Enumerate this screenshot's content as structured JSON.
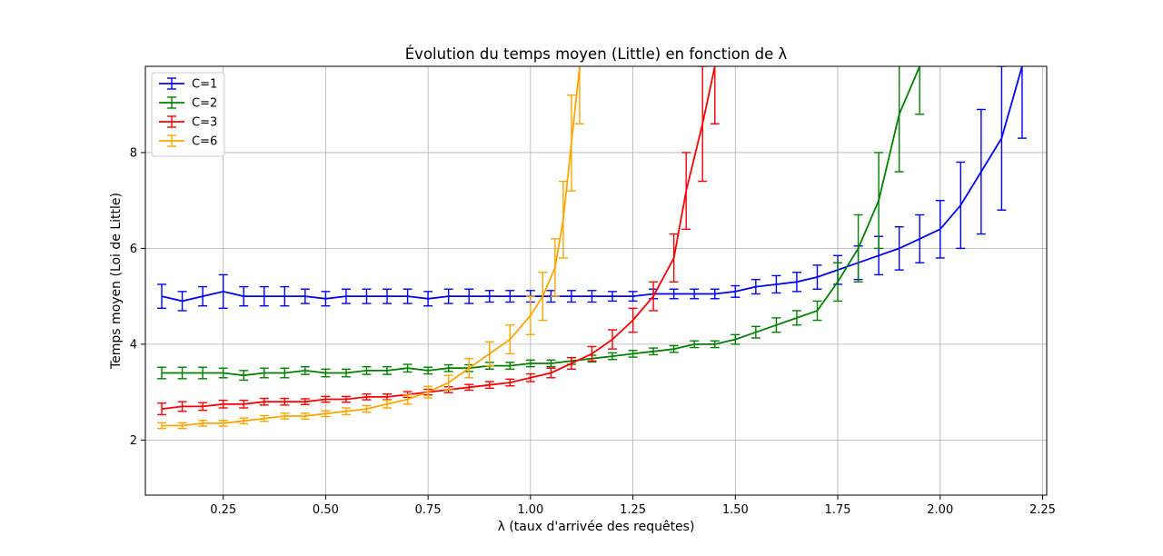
{
  "chart_data": {
    "type": "line",
    "title": "Évolution du temps moyen (Little) en fonction de λ",
    "xlabel": "λ (taux d'arrivée des requêtes)",
    "ylabel": "Temps moyen (Loi de Little)",
    "xlim": [
      0.06,
      2.26
    ],
    "ylim": [
      0.85,
      9.8
    ],
    "xticks": [
      0.25,
      0.5,
      0.75,
      1.0,
      1.25,
      1.5,
      1.75,
      2.0,
      2.25
    ],
    "xtick_labels": [
      "0.25",
      "0.50",
      "0.75",
      "1.00",
      "1.25",
      "1.50",
      "1.75",
      "2.00",
      "2.25"
    ],
    "yticks": [
      2,
      4,
      6,
      8
    ],
    "ytick_labels": [
      "2",
      "4",
      "6",
      "8"
    ],
    "grid": true,
    "error_bars": true,
    "legend_position": "top-left",
    "series": [
      {
        "name": "C=1",
        "color": "#0000ff",
        "x": [
          0.1,
          0.15,
          0.2,
          0.25,
          0.3,
          0.35,
          0.4,
          0.45,
          0.5,
          0.55,
          0.6,
          0.65,
          0.7,
          0.75,
          0.8,
          0.85,
          0.9,
          0.95,
          1.0,
          1.05,
          1.1,
          1.15,
          1.2,
          1.25,
          1.3,
          1.35,
          1.4,
          1.45,
          1.5,
          1.55,
          1.6,
          1.65,
          1.7,
          1.75,
          1.8,
          1.85,
          1.9,
          1.95,
          2.0,
          2.05,
          2.1,
          2.15,
          2.2
        ],
        "y": [
          5.0,
          4.9,
          5.0,
          5.1,
          5.0,
          5.0,
          5.0,
          5.0,
          4.95,
          5.0,
          5.0,
          5.0,
          5.0,
          4.95,
          5.0,
          5.0,
          5.0,
          5.0,
          5.0,
          5.0,
          5.0,
          5.0,
          5.0,
          5.0,
          5.05,
          5.05,
          5.05,
          5.05,
          5.1,
          5.2,
          5.25,
          5.3,
          5.4,
          5.55,
          5.7,
          5.85,
          6.0,
          6.2,
          6.4,
          6.9,
          7.6,
          8.3,
          9.8
        ],
        "err": [
          0.25,
          0.2,
          0.2,
          0.35,
          0.2,
          0.2,
          0.2,
          0.15,
          0.15,
          0.15,
          0.15,
          0.15,
          0.15,
          0.15,
          0.15,
          0.15,
          0.12,
          0.12,
          0.12,
          0.12,
          0.12,
          0.12,
          0.1,
          0.1,
          0.1,
          0.1,
          0.1,
          0.1,
          0.12,
          0.15,
          0.18,
          0.2,
          0.25,
          0.3,
          0.35,
          0.4,
          0.45,
          0.5,
          0.6,
          0.9,
          1.3,
          1.5,
          1.5
        ]
      },
      {
        "name": "C=2",
        "color": "#008000",
        "x": [
          0.1,
          0.15,
          0.2,
          0.25,
          0.3,
          0.35,
          0.4,
          0.45,
          0.5,
          0.55,
          0.6,
          0.65,
          0.7,
          0.75,
          0.8,
          0.85,
          0.9,
          0.95,
          1.0,
          1.05,
          1.1,
          1.15,
          1.2,
          1.25,
          1.3,
          1.35,
          1.4,
          1.45,
          1.5,
          1.55,
          1.6,
          1.65,
          1.7,
          1.75,
          1.8,
          1.85,
          1.9,
          1.95
        ],
        "y": [
          3.4,
          3.4,
          3.4,
          3.4,
          3.35,
          3.4,
          3.4,
          3.45,
          3.4,
          3.4,
          3.45,
          3.45,
          3.5,
          3.45,
          3.5,
          3.5,
          3.55,
          3.55,
          3.6,
          3.6,
          3.65,
          3.7,
          3.75,
          3.8,
          3.85,
          3.9,
          4.0,
          4.0,
          4.1,
          4.25,
          4.4,
          4.55,
          4.7,
          5.3,
          6.0,
          7.0,
          8.8,
          9.8
        ],
        "err": [
          0.12,
          0.12,
          0.12,
          0.1,
          0.1,
          0.1,
          0.1,
          0.08,
          0.08,
          0.08,
          0.08,
          0.08,
          0.08,
          0.07,
          0.07,
          0.07,
          0.07,
          0.07,
          0.07,
          0.07,
          0.07,
          0.07,
          0.07,
          0.07,
          0.07,
          0.07,
          0.07,
          0.07,
          0.1,
          0.12,
          0.15,
          0.15,
          0.2,
          0.4,
          0.7,
          1.0,
          1.2,
          1.0
        ]
      },
      {
        "name": "C=3",
        "color": "#ff0000",
        "x": [
          0.1,
          0.15,
          0.2,
          0.25,
          0.3,
          0.35,
          0.4,
          0.45,
          0.5,
          0.55,
          0.6,
          0.65,
          0.7,
          0.75,
          0.8,
          0.85,
          0.9,
          0.95,
          1.0,
          1.05,
          1.1,
          1.15,
          1.2,
          1.25,
          1.3,
          1.35,
          1.38,
          1.42,
          1.45
        ],
        "y": [
          2.65,
          2.7,
          2.7,
          2.75,
          2.75,
          2.8,
          2.8,
          2.8,
          2.85,
          2.85,
          2.9,
          2.9,
          2.95,
          3.0,
          3.05,
          3.1,
          3.15,
          3.2,
          3.3,
          3.4,
          3.6,
          3.8,
          4.1,
          4.5,
          5.0,
          5.8,
          7.2,
          8.6,
          9.8
        ],
        "err": [
          0.12,
          0.1,
          0.08,
          0.08,
          0.08,
          0.07,
          0.07,
          0.06,
          0.06,
          0.06,
          0.06,
          0.06,
          0.06,
          0.06,
          0.06,
          0.06,
          0.07,
          0.07,
          0.08,
          0.1,
          0.12,
          0.15,
          0.2,
          0.25,
          0.3,
          0.5,
          0.8,
          1.2,
          1.2
        ]
      },
      {
        "name": "C=6",
        "color": "#ffa500",
        "x": [
          0.1,
          0.15,
          0.2,
          0.25,
          0.3,
          0.35,
          0.4,
          0.45,
          0.5,
          0.55,
          0.6,
          0.65,
          0.7,
          0.75,
          0.8,
          0.85,
          0.9,
          0.95,
          1.0,
          1.03,
          1.06,
          1.08,
          1.1,
          1.12
        ],
        "y": [
          2.3,
          2.3,
          2.35,
          2.35,
          2.4,
          2.45,
          2.5,
          2.5,
          2.55,
          2.6,
          2.65,
          2.75,
          2.85,
          3.0,
          3.2,
          3.5,
          3.8,
          4.1,
          4.6,
          5.0,
          5.6,
          6.6,
          8.2,
          9.8
        ],
        "err": [
          0.06,
          0.06,
          0.06,
          0.06,
          0.06,
          0.06,
          0.06,
          0.06,
          0.06,
          0.07,
          0.07,
          0.08,
          0.1,
          0.12,
          0.15,
          0.2,
          0.25,
          0.3,
          0.4,
          0.5,
          0.6,
          0.8,
          1.0,
          1.2
        ]
      }
    ]
  }
}
